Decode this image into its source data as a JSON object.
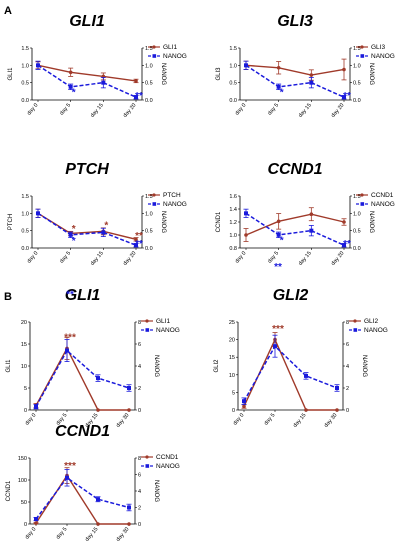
{
  "figure": {
    "section_labels": [
      "A",
      "B"
    ]
  },
  "colors": {
    "gene": "#a03a2a",
    "nanog": "#1a1adc"
  },
  "chart_data": [
    {
      "type": "line",
      "section": "A",
      "title": "GLI1",
      "categories": [
        "day 0",
        "day 5",
        "day 15",
        "day 20"
      ],
      "ylabel": "GLI1",
      "y2label": "NANOG",
      "ylim": [
        0,
        1.5
      ],
      "yticks": [
        "0.0",
        "0.5",
        "1.0",
        "1.5"
      ],
      "y2lim": [
        0,
        1.5
      ],
      "y2ticks": [
        "0.0",
        "0.5",
        "1.0",
        "1.5"
      ],
      "series": [
        {
          "name": "GLI1",
          "axis": "left",
          "values": [
            1.0,
            0.8,
            0.68,
            0.55
          ],
          "errors": [
            0.1,
            0.12,
            0.1,
            0.05
          ]
        },
        {
          "name": "NANOG",
          "axis": "right",
          "values": [
            1.0,
            0.38,
            0.5,
            0.08
          ],
          "errors": [
            0.12,
            0.08,
            0.15,
            0.05
          ]
        }
      ],
      "annotations": [
        {
          "text": "*",
          "x": "day 5",
          "y": 0.22,
          "series": "NANOG"
        },
        {
          "text": "**",
          "x": "day 20",
          "y": 0.12,
          "series": "NANOG"
        }
      ]
    },
    {
      "type": "line",
      "section": "A",
      "title": "GLI3",
      "categories": [
        "day 0",
        "day 5",
        "day 15",
        "day 20"
      ],
      "ylabel": "GLI3",
      "y2label": "NANOG",
      "ylim": [
        0,
        1.5
      ],
      "yticks": [
        "0.0",
        "0.5",
        "1.0",
        "1.5"
      ],
      "y2lim": [
        0,
        1.5
      ],
      "y2ticks": [
        "0.0",
        "0.5",
        "1.0",
        "1.5"
      ],
      "series": [
        {
          "name": "GLI3",
          "axis": "left",
          "values": [
            1.0,
            0.93,
            0.72,
            0.88
          ],
          "errors": [
            0.12,
            0.18,
            0.15,
            0.3
          ]
        },
        {
          "name": "NANOG",
          "axis": "right",
          "values": [
            1.0,
            0.38,
            0.5,
            0.08
          ],
          "errors": [
            0.12,
            0.08,
            0.15,
            0.05
          ]
        }
      ],
      "annotations": [
        {
          "text": "*",
          "x": "day 5",
          "y": 0.22,
          "series": "NANOG"
        },
        {
          "text": "**",
          "x": "day 20",
          "y": 0.12,
          "series": "NANOG"
        }
      ]
    },
    {
      "type": "line",
      "section": "A",
      "title": "PTCH",
      "categories": [
        "day 0",
        "day 5",
        "day 15",
        "day 20"
      ],
      "ylabel": "PTCH",
      "y2label": "NANOG",
      "ylim": [
        0,
        1.5
      ],
      "yticks": [
        "0.0",
        "0.5",
        "1.0",
        "1.5"
      ],
      "y2lim": [
        0,
        1.5
      ],
      "y2ticks": [
        "0.0",
        "0.5",
        "1.0",
        "1.5"
      ],
      "series": [
        {
          "name": "PTCH",
          "axis": "left",
          "values": [
            1.0,
            0.42,
            0.48,
            0.25
          ],
          "errors": [
            0.12,
            0.06,
            0.1,
            0.05
          ]
        },
        {
          "name": "NANOG",
          "axis": "right",
          "values": [
            1.0,
            0.38,
            0.45,
            0.08
          ],
          "errors": [
            0.12,
            0.08,
            0.12,
            0.05
          ]
        }
      ],
      "annotations": [
        {
          "text": "*",
          "x": "day 5",
          "y": 0.55,
          "series": "PTCH"
        },
        {
          "text": "*",
          "x": "day 15",
          "y": 0.65,
          "series": "PTCH"
        },
        {
          "text": "**",
          "x": "day 20",
          "y": 0.35,
          "series": "PTCH"
        },
        {
          "text": "*",
          "x": "day 5",
          "y": 0.2,
          "series": "NANOG"
        },
        {
          "text": "**",
          "x": "day 20",
          "y": 0.12,
          "series": "NANOG"
        }
      ]
    },
    {
      "type": "line",
      "section": "A",
      "title": "CCND1",
      "categories": [
        "day 0",
        "day 5",
        "day 15",
        "day 20"
      ],
      "ylabel": "CCND1",
      "y2label": "NANOG",
      "ylim": [
        0.8,
        1.6
      ],
      "yticks": [
        "0.8",
        "1.0",
        "1.2",
        "1.4",
        "1.6"
      ],
      "y2lim": [
        0,
        1.5
      ],
      "y2ticks": [
        "0.0",
        "0.5",
        "1.0",
        "1.5"
      ],
      "series": [
        {
          "name": "CCND1",
          "axis": "left",
          "values": [
            1.0,
            1.21,
            1.32,
            1.2
          ],
          "errors": [
            0.1,
            0.12,
            0.1,
            0.05
          ]
        },
        {
          "name": "NANOG",
          "axis": "right",
          "values": [
            1.0,
            0.38,
            0.5,
            0.08
          ],
          "errors": [
            0.12,
            0.08,
            0.15,
            0.05
          ]
        }
      ],
      "annotations": [
        {
          "text": "*",
          "x": "day 5",
          "y": 0.22,
          "series": "NANOG"
        },
        {
          "text": "**",
          "x": "day 20",
          "y": 0.12,
          "series": "NANOG"
        }
      ]
    },
    {
      "type": "line",
      "section": "B",
      "title": "GLI1",
      "categories": [
        "day 0",
        "day 5",
        "day 15",
        "day 30"
      ],
      "ylabel": "GLI1",
      "y2label": "NANOG",
      "ylim": [
        0,
        20
      ],
      "yticks": [
        "0",
        "5",
        "10",
        "15",
        "20"
      ],
      "y2lim": [
        0,
        8
      ],
      "y2ticks": [
        "0",
        "2",
        "4",
        "6",
        "8"
      ],
      "series": [
        {
          "name": "GLI1",
          "axis": "left",
          "values": [
            1,
            14,
            0,
            0
          ],
          "errors": [
            0.5,
            2.5,
            0,
            0
          ]
        },
        {
          "name": "NANOG",
          "axis": "right",
          "values": [
            0.3,
            5.4,
            2.9,
            2.0
          ],
          "errors": [
            0.2,
            1.0,
            0.3,
            0.3
          ]
        }
      ],
      "annotations": [
        {
          "text": "***",
          "x": "day 5",
          "y": 16.5,
          "series": "GLI1"
        },
        {
          "text": "**",
          "x": "day 5",
          "y": 10.5,
          "series": "NANOG"
        }
      ]
    },
    {
      "type": "line",
      "section": "B",
      "title": "GLI2",
      "categories": [
        "day 0",
        "day 5",
        "day 15",
        "day 30"
      ],
      "ylabel": "GLI2",
      "y2label": "NANOG",
      "ylim": [
        0,
        25
      ],
      "yticks": [
        "0",
        "5",
        "10",
        "15",
        "20",
        "25"
      ],
      "y2lim": [
        0,
        8
      ],
      "y2ticks": [
        "0",
        "2",
        "4",
        "6",
        "8"
      ],
      "series": [
        {
          "name": "GLI2",
          "axis": "left",
          "values": [
            1,
            20,
            0,
            0
          ],
          "errors": [
            0.5,
            2,
            0,
            0
          ]
        },
        {
          "name": "NANOG",
          "axis": "right",
          "values": [
            0.8,
            5.8,
            3.1,
            2.0
          ],
          "errors": [
            0.3,
            1.0,
            0.3,
            0.3
          ]
        }
      ],
      "annotations": [
        {
          "text": "***",
          "x": "day 5",
          "y": 23,
          "series": "GLI2"
        },
        {
          "text": "**",
          "x": "day 5",
          "y": 13,
          "series": "NANOG"
        }
      ]
    },
    {
      "type": "line",
      "section": "B",
      "title": "CCND1",
      "categories": [
        "day 0",
        "day 5",
        "day 15",
        "day 30"
      ],
      "ylabel": "CCND1",
      "y2label": "NANOG",
      "ylim": [
        0,
        150
      ],
      "yticks": [
        "0",
        "50",
        "100",
        "150"
      ],
      "y2lim": [
        0,
        8
      ],
      "y2ticks": [
        "0",
        "2",
        "4",
        "6",
        "8"
      ],
      "series": [
        {
          "name": "CCND1",
          "axis": "left",
          "values": [
            2,
            110,
            0,
            0
          ],
          "errors": [
            1,
            18,
            0,
            0
          ]
        },
        {
          "name": "NANOG",
          "axis": "right",
          "values": [
            0.6,
            5.6,
            3.0,
            2.0
          ],
          "errors": [
            0.2,
            1.0,
            0.3,
            0.4
          ]
        }
      ],
      "annotations": [
        {
          "text": "***",
          "x": "day 5",
          "y": 132,
          "series": "CCND1"
        },
        {
          "text": "***",
          "x": "day 5",
          "y": 72,
          "series": "NANOG"
        }
      ]
    }
  ]
}
